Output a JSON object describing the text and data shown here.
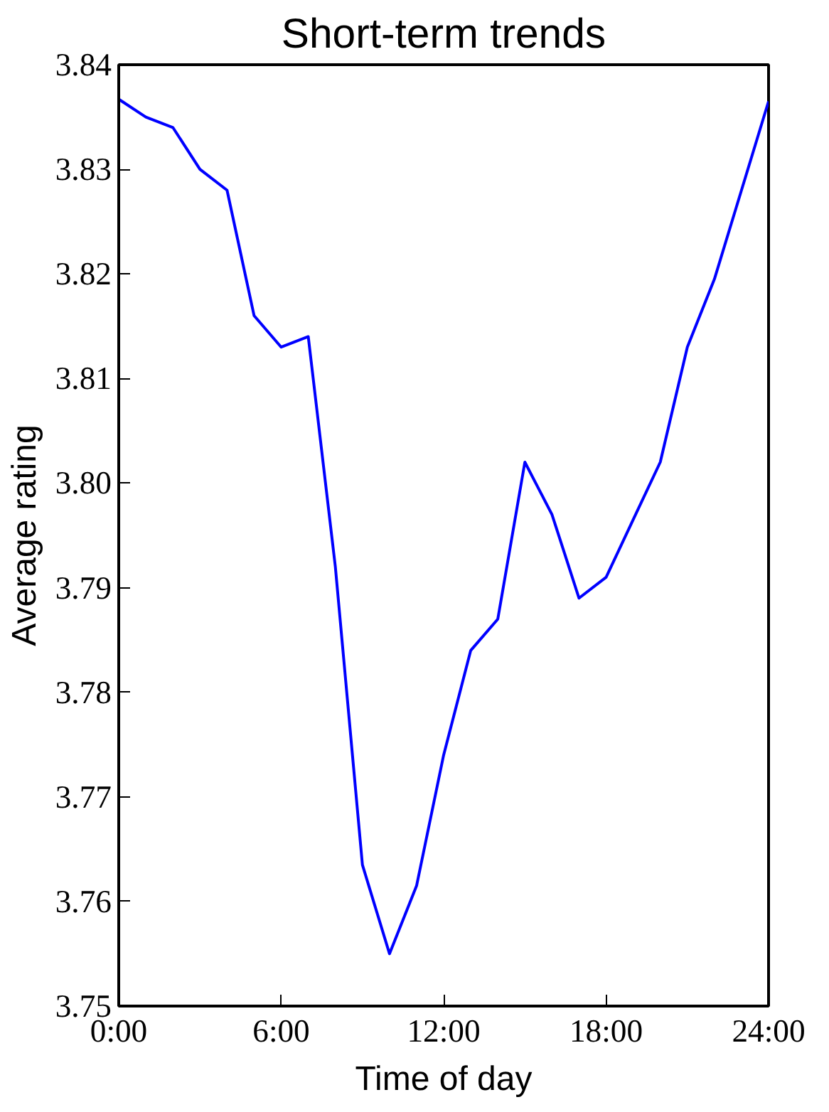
{
  "chart_data": {
    "type": "line",
    "title": "Short-term trends",
    "xlabel": "Time of day",
    "ylabel": "Average rating",
    "x": [
      0,
      1,
      2,
      3,
      4,
      5,
      6,
      7,
      8,
      9,
      10,
      11,
      12,
      13,
      14,
      15,
      16,
      17,
      18,
      19,
      20,
      21,
      22,
      23,
      24
    ],
    "series": [
      {
        "color": "#0000ff",
        "values": [
          3.8367,
          3.835,
          3.834,
          3.83,
          3.828,
          3.816,
          3.813,
          3.814,
          3.792,
          3.7635,
          3.755,
          3.7615,
          3.774,
          3.784,
          3.787,
          3.802,
          3.797,
          3.789,
          3.791,
          3.7965,
          3.802,
          3.813,
          3.8195,
          3.828,
          3.8365
        ]
      }
    ],
    "xlim": [
      0,
      24
    ],
    "ylim": [
      3.75,
      3.84
    ],
    "xticks": [
      {
        "value": 0,
        "label": "0:00"
      },
      {
        "value": 6,
        "label": "6:00"
      },
      {
        "value": 12,
        "label": "12:00"
      },
      {
        "value": 18,
        "label": "18:00"
      },
      {
        "value": 24,
        "label": "24:00"
      }
    ],
    "yticks": [
      {
        "value": 3.75,
        "label": "3.75"
      },
      {
        "value": 3.76,
        "label": "3.76"
      },
      {
        "value": 3.77,
        "label": "3.77"
      },
      {
        "value": 3.78,
        "label": "3.78"
      },
      {
        "value": 3.79,
        "label": "3.79"
      },
      {
        "value": 3.8,
        "label": "3.80"
      },
      {
        "value": 3.81,
        "label": "3.81"
      },
      {
        "value": 3.82,
        "label": "3.82"
      },
      {
        "value": 3.83,
        "label": "3.83"
      },
      {
        "value": 3.84,
        "label": "3.84"
      }
    ],
    "grid": false,
    "marker": "none",
    "line_style": "solid"
  }
}
